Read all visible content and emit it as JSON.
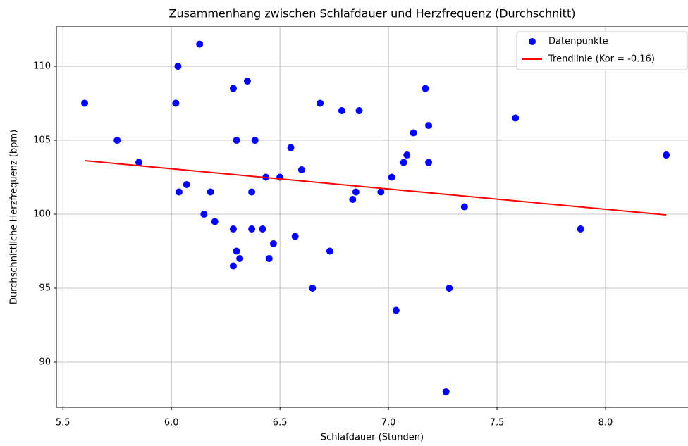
{
  "chart_data": {
    "type": "scatter",
    "title": "Zusammenhang zwischen Schlafdauer und Herzfrequenz (Durchschnitt)",
    "x_label": "Schlafdauer (Stunden)",
    "y_label": "Durchschnittliche Herzfrequenz (bpm)",
    "xlim": [
      5.47,
      8.38
    ],
    "ylim": [
      86.95,
      112.67
    ],
    "xticks": [
      5.5,
      {
        "value": 6,
        "label": "6.0"
      },
      6.5,
      {
        "value": 7,
        "label": "7.0"
      },
      7.5,
      {
        "value": 8,
        "label": "8.0"
      }
    ],
    "yticks": [
      90,
      95,
      100,
      105,
      110
    ],
    "grid": true,
    "legend": "upper right",
    "series": [
      {
        "name": "Datenpunkte",
        "type": "scatter",
        "color": "#0000ff",
        "x": [
          5.6,
          5.75,
          5.85,
          6.02,
          6.03,
          6.035,
          6.07,
          6.13,
          6.15,
          6.18,
          6.2,
          6.285,
          6.285,
          6.285,
          6.3,
          6.3,
          6.315,
          6.35,
          6.37,
          6.37,
          6.385,
          6.42,
          6.435,
          6.45,
          6.47,
          6.5,
          6.55,
          6.57,
          6.6,
          6.65,
          6.685,
          6.73,
          6.785,
          6.835,
          6.85,
          6.865,
          6.965,
          7.015,
          7.035,
          7.07,
          7.085,
          7.115,
          7.17,
          7.185,
          7.185,
          7.265,
          7.28,
          7.35,
          7.585,
          7.885,
          8.28
        ],
        "values": [
          107.5,
          105,
          103.5,
          107.5,
          110,
          101.5,
          102,
          111.5,
          100,
          101.5,
          99.5,
          108.5,
          99,
          96.5,
          105,
          97.5,
          97,
          109,
          101.5,
          99,
          105,
          99,
          102.5,
          97,
          98,
          102.5,
          104.5,
          98.5,
          103,
          95,
          107.5,
          97.5,
          107,
          101,
          101.5,
          107,
          101.5,
          102.5,
          93.5,
          103.5,
          104,
          105.5,
          108.5,
          106,
          103.5,
          88,
          95,
          100.5,
          106.5,
          99,
          104
        ]
      },
      {
        "name": "Trendlinie (Kor = -0.16)",
        "type": "line",
        "color": "#ff0000",
        "x": [
          5.6,
          8.28
        ],
        "values": [
          103.62,
          99.95
        ]
      }
    ]
  }
}
